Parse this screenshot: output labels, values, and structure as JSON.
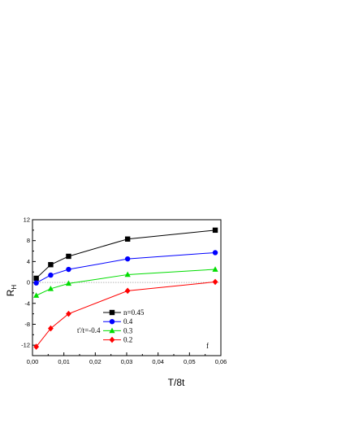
{
  "chart_data": {
    "type": "line",
    "xlabel": "T/8t",
    "ylabel": "R",
    "ylabel_sub": "H",
    "xlim": [
      0.0,
      0.06
    ],
    "ylim": [
      -14,
      12
    ],
    "x_ticks": [
      0.0,
      0.01,
      0.02,
      0.03,
      0.04,
      0.05,
      0.06
    ],
    "x_tick_labels": [
      "0,00",
      "0,01",
      "0,02",
      "0,03",
      "0,04",
      "0,05",
      "0,06"
    ],
    "y_ticks": [
      12,
      8,
      4,
      0,
      -4,
      -8,
      -12
    ],
    "y_tick_labels": [
      "12",
      "8",
      "4",
      "0",
      "-4",
      "-8",
      "-12"
    ],
    "zero_line": true,
    "grid": false,
    "legend_position": "lower-center",
    "annotations": [
      "t'/t=-0.4",
      "f"
    ],
    "series": [
      {
        "name": "n=0.45",
        "color": "#000000",
        "marker": "square",
        "x": [
          0.0012,
          0.0058,
          0.0115,
          0.0303,
          0.0582
        ],
        "y": [
          0.8,
          3.4,
          5.0,
          8.3,
          10.0
        ]
      },
      {
        "name": "0.4",
        "color": "#0000ff",
        "marker": "circle",
        "x": [
          0.0012,
          0.0058,
          0.0115,
          0.0303,
          0.0582
        ],
        "y": [
          -0.1,
          1.4,
          2.5,
          4.5,
          5.7
        ]
      },
      {
        "name": "0.3",
        "color": "#00dd00",
        "marker": "triangle",
        "x": [
          0.0012,
          0.0058,
          0.0115,
          0.0303,
          0.0582
        ],
        "y": [
          -2.5,
          -1.2,
          -0.2,
          1.5,
          2.5
        ]
      },
      {
        "name": "0.2",
        "color": "#ff0000",
        "marker": "diamond",
        "x": [
          0.0012,
          0.0058,
          0.0115,
          0.0303,
          0.0582
        ],
        "y": [
          -12.3,
          -8.8,
          -6.0,
          -1.6,
          0.1
        ]
      }
    ]
  }
}
